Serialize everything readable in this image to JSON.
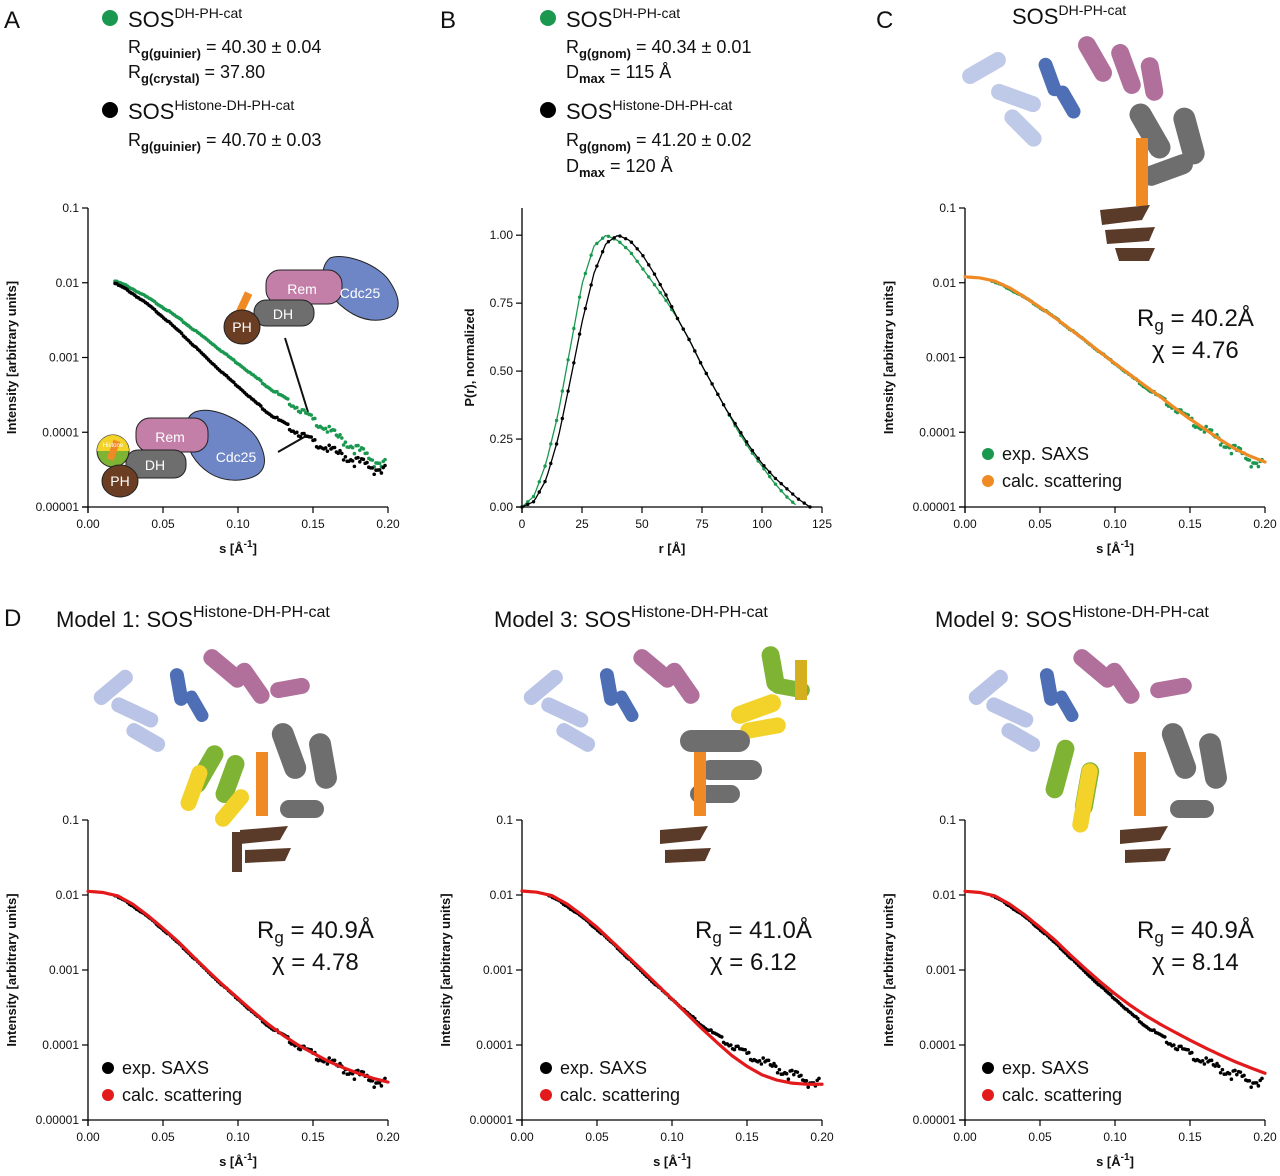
{
  "panels": {
    "A": {
      "letter": "A",
      "legend": [
        {
          "name": "SOS",
          "sup": "DH-PH-cat",
          "color": "#1a9850",
          "lines": [
            {
              "r": "R",
              "sub": "g(guinier)",
              "val": " = 40.30 ± 0.04"
            },
            {
              "r": "R",
              "sub": "g(crystal)",
              "val": " = 37.80"
            }
          ]
        },
        {
          "name": "SOS",
          "sup": "Histone-DH-PH-cat",
          "color": "#000000",
          "lines": [
            {
              "r": "R",
              "sub": "g(guinier)",
              "val": " = 40.70 ± 0.03"
            }
          ]
        }
      ],
      "schematic_labels": [
        "Rem",
        "Cdc25",
        "DH",
        "PH",
        "Histone"
      ]
    },
    "B": {
      "letter": "B",
      "legend": [
        {
          "name": "SOS",
          "sup": "DH-PH-cat",
          "color": "#1a9850",
          "lines": [
            {
              "r": "R",
              "sub": "g(gnom)",
              "val": " = 40.34 ± 0.01"
            },
            {
              "r": "D",
              "sub": "max",
              "val": " = 115 Å"
            }
          ]
        },
        {
          "name": "SOS",
          "sup": "Histone-DH-PH-cat",
          "color": "#000000",
          "lines": [
            {
              "r": "R",
              "sub": "g(gnom)",
              "val": " = 41.20 ± 0.02"
            },
            {
              "r": "D",
              "sub": "max",
              "val": " = 120 Å"
            }
          ]
        }
      ]
    },
    "C": {
      "letter": "C",
      "title_main": "SOS",
      "title_sup": "DH-PH-cat",
      "rg": "40.2Å",
      "chi": "4.76",
      "legend": [
        "exp. SAXS",
        "calc. scattering"
      ]
    },
    "D": {
      "letter": "D",
      "models": [
        {
          "title": "Model 1: SOS",
          "sup": "Histone-DH-PH-cat",
          "rg": "40.9Å",
          "chi": "4.78"
        },
        {
          "title": "Model 3: SOS",
          "sup": "Histone-DH-PH-cat",
          "rg": "41.0Å",
          "chi": "6.12"
        },
        {
          "title": "Model 9: SOS",
          "sup": "Histone-DH-PH-cat",
          "rg": "40.9Å",
          "chi": "8.14"
        }
      ],
      "legend": [
        "exp. SAXS",
        "calc. scattering"
      ]
    }
  },
  "colors": {
    "green": "#1a9850",
    "black": "#000000",
    "orange": "#f08a24",
    "red": "#e31a1c",
    "rem": "#c47fa8",
    "cdc25": "#6f86c6",
    "dh": "#6e6e6e",
    "ph": "#6b3d22",
    "linker": "#f08a24"
  },
  "chart_data": [
    {
      "id": "A",
      "type": "scatter",
      "title": "",
      "xlabel": "s [Å^-1]",
      "ylabel": "Intensity [arbitrary units]",
      "yscale": "log",
      "xlim": [
        0,
        0.2
      ],
      "ylim": [
        1e-05,
        0.1
      ],
      "xticks": [
        "0.00",
        "0.05",
        "0.10",
        "0.15",
        "0.20"
      ],
      "yticks": [
        "0.00001",
        "0.0001",
        "0.001",
        "0.01",
        "0.1"
      ],
      "series": [
        {
          "name": "SOS DH-PH-cat",
          "color": "#1a9850",
          "x": [
            0.018,
            0.025,
            0.03,
            0.04,
            0.05,
            0.06,
            0.07,
            0.08,
            0.09,
            0.1,
            0.11,
            0.12,
            0.13,
            0.14,
            0.15,
            0.16,
            0.17,
            0.18,
            0.19,
            0.198
          ],
          "y": [
            0.0105,
            0.0093,
            0.0082,
            0.0063,
            0.0047,
            0.0034,
            0.0024,
            0.0017,
            0.00118,
            0.00083,
            0.00058,
            0.00041,
            0.00029,
            0.00021,
            0.000148,
            0.000108,
            7.8e-05,
            5.8e-05,
            4.3e-05,
            3.6e-05
          ]
        },
        {
          "name": "SOS Histone-DH-PH-cat",
          "color": "#000000",
          "x": [
            0.018,
            0.025,
            0.03,
            0.04,
            0.05,
            0.06,
            0.07,
            0.08,
            0.09,
            0.1,
            0.11,
            0.12,
            0.13,
            0.14,
            0.15,
            0.16,
            0.17,
            0.18,
            0.19,
            0.198
          ],
          "y": [
            0.0098,
            0.0083,
            0.0071,
            0.0051,
            0.0035,
            0.0023,
            0.00148,
            0.00095,
            0.00062,
            0.00041,
            0.00027,
            0.000185,
            0.000132,
            9.8e-05,
            7.6e-05,
            6e-05,
            4.9e-05,
            4e-05,
            3.4e-05,
            3e-05
          ]
        }
      ]
    },
    {
      "id": "B",
      "type": "line",
      "xlabel": "r [Å]",
      "ylabel": "P(r), normalized",
      "xlim": [
        0,
        125
      ],
      "ylim": [
        0,
        1.1
      ],
      "xticks": [
        "0",
        "25",
        "50",
        "75",
        "100",
        "125"
      ],
      "yticks": [
        "0.00",
        "0.25",
        "0.50",
        "0.75",
        "1.00"
      ],
      "series": [
        {
          "name": "SOS DH-PH-cat",
          "color": "#1a9850",
          "x": [
            0,
            5,
            10,
            15,
            20,
            25,
            30,
            35,
            40,
            45,
            50,
            55,
            60,
            65,
            70,
            75,
            80,
            85,
            90,
            95,
            100,
            105,
            110,
            115
          ],
          "y": [
            0,
            0.04,
            0.16,
            0.34,
            0.58,
            0.82,
            0.96,
            1.0,
            0.98,
            0.94,
            0.88,
            0.82,
            0.76,
            0.69,
            0.61,
            0.52,
            0.44,
            0.36,
            0.28,
            0.21,
            0.15,
            0.09,
            0.04,
            0
          ]
        },
        {
          "name": "SOS Histone-DH-PH-cat",
          "color": "#000000",
          "x": [
            0,
            5,
            10,
            15,
            20,
            25,
            30,
            35,
            40,
            45,
            50,
            55,
            60,
            65,
            70,
            75,
            80,
            85,
            90,
            95,
            100,
            105,
            110,
            115,
            120
          ],
          "y": [
            0,
            0.02,
            0.1,
            0.25,
            0.46,
            0.68,
            0.86,
            0.97,
            1.0,
            0.98,
            0.93,
            0.86,
            0.78,
            0.69,
            0.61,
            0.52,
            0.44,
            0.36,
            0.29,
            0.22,
            0.16,
            0.11,
            0.07,
            0.03,
            0
          ]
        }
      ]
    },
    {
      "id": "C",
      "type": "scatter",
      "xlabel": "s [Å^-1]",
      "ylabel": "Intensity [arbitrary units]",
      "yscale": "log",
      "xlim": [
        0,
        0.2
      ],
      "ylim": [
        1e-05,
        0.1
      ],
      "xticks": [
        "0.00",
        "0.05",
        "0.10",
        "0.15",
        "0.20"
      ],
      "yticks": [
        "0.00001",
        "0.0001",
        "0.001",
        "0.01",
        "0.1"
      ],
      "series": [
        {
          "name": "exp. SAXS",
          "color": "#1a9850",
          "x": [
            0.018,
            0.025,
            0.03,
            0.04,
            0.05,
            0.06,
            0.07,
            0.08,
            0.09,
            0.1,
            0.11,
            0.12,
            0.13,
            0.14,
            0.15,
            0.16,
            0.17,
            0.18,
            0.19,
            0.198
          ],
          "y": [
            0.0105,
            0.0093,
            0.0082,
            0.0063,
            0.0047,
            0.0034,
            0.0024,
            0.0017,
            0.00118,
            0.00083,
            0.00058,
            0.00041,
            0.00029,
            0.00021,
            0.000148,
            0.000108,
            7.8e-05,
            5.8e-05,
            4.3e-05,
            3.6e-05
          ]
        },
        {
          "name": "calc. scattering",
          "color": "#f08a24",
          "x": [
            0,
            0.01,
            0.02,
            0.03,
            0.04,
            0.05,
            0.06,
            0.07,
            0.08,
            0.09,
            0.1,
            0.11,
            0.12,
            0.13,
            0.14,
            0.15,
            0.16,
            0.17,
            0.18,
            0.19,
            0.2
          ],
          "y": [
            0.012,
            0.0116,
            0.0105,
            0.0085,
            0.0064,
            0.0047,
            0.0034,
            0.0024,
            0.0017,
            0.00118,
            0.00083,
            0.00059,
            0.00042,
            0.0003,
            0.00021,
            0.00015,
            0.00011,
            8e-05,
            6e-05,
            4.8e-05,
            4e-05
          ]
        }
      ]
    },
    {
      "id": "D1",
      "type": "scatter",
      "xlabel": "s [Å^-1]",
      "ylabel": "Intensity [arbitrary units]",
      "yscale": "log",
      "xlim": [
        0,
        0.2
      ],
      "ylim": [
        1e-05,
        0.1
      ],
      "xticks": [
        "0.00",
        "0.05",
        "0.10",
        "0.15",
        "0.20"
      ],
      "yticks": [
        "0.00001",
        "0.0001",
        "0.001",
        "0.01",
        "0.1"
      ],
      "series": [
        {
          "name": "exp. SAXS",
          "color": "#000000",
          "x": [
            0.018,
            0.025,
            0.03,
            0.04,
            0.05,
            0.06,
            0.07,
            0.08,
            0.09,
            0.1,
            0.11,
            0.12,
            0.13,
            0.14,
            0.15,
            0.16,
            0.17,
            0.18,
            0.19,
            0.198
          ],
          "y": [
            0.0098,
            0.0083,
            0.0071,
            0.0051,
            0.0035,
            0.0023,
            0.00148,
            0.00095,
            0.00062,
            0.00041,
            0.00027,
            0.000185,
            0.000132,
            9.8e-05,
            7.6e-05,
            6e-05,
            4.9e-05,
            4e-05,
            3.4e-05,
            3e-05
          ]
        },
        {
          "name": "calc. scattering",
          "color": "#e31a1c",
          "x": [
            0,
            0.01,
            0.02,
            0.03,
            0.04,
            0.05,
            0.06,
            0.07,
            0.08,
            0.09,
            0.1,
            0.11,
            0.12,
            0.13,
            0.14,
            0.15,
            0.16,
            0.17,
            0.18,
            0.19,
            0.2
          ],
          "y": [
            0.0112,
            0.0108,
            0.0097,
            0.0075,
            0.0053,
            0.0036,
            0.0024,
            0.00152,
            0.00097,
            0.00063,
            0.00042,
            0.00028,
            0.00019,
            0.000135,
            0.0001,
            7.8e-05,
            6.1e-05,
            5e-05,
            4.2e-05,
            3.6e-05,
            3.2e-05
          ]
        }
      ]
    },
    {
      "id": "D3",
      "type": "scatter",
      "xlabel": "s [Å^-1]",
      "ylabel": "Intensity [arbitrary units]",
      "yscale": "log",
      "xlim": [
        0,
        0.2
      ],
      "ylim": [
        1e-05,
        0.1
      ],
      "xticks": [
        "0.00",
        "0.05",
        "0.10",
        "0.15",
        "0.20"
      ],
      "yticks": [
        "0.00001",
        "0.0001",
        "0.001",
        "0.01",
        "0.1"
      ],
      "series": [
        {
          "name": "exp. SAXS",
          "color": "#000000",
          "x": [
            0.018,
            0.025,
            0.03,
            0.04,
            0.05,
            0.06,
            0.07,
            0.08,
            0.09,
            0.1,
            0.11,
            0.12,
            0.13,
            0.14,
            0.15,
            0.16,
            0.17,
            0.18,
            0.19,
            0.198
          ],
          "y": [
            0.0098,
            0.0083,
            0.0071,
            0.0051,
            0.0035,
            0.0023,
            0.00148,
            0.00095,
            0.00062,
            0.00041,
            0.00027,
            0.000185,
            0.000132,
            9.8e-05,
            7.6e-05,
            6e-05,
            4.9e-05,
            4e-05,
            3.4e-05,
            3e-05
          ]
        },
        {
          "name": "calc. scattering",
          "color": "#e31a1c",
          "x": [
            0,
            0.01,
            0.02,
            0.03,
            0.04,
            0.05,
            0.06,
            0.07,
            0.08,
            0.09,
            0.1,
            0.11,
            0.12,
            0.13,
            0.14,
            0.15,
            0.16,
            0.17,
            0.18,
            0.19,
            0.2
          ],
          "y": [
            0.0113,
            0.0109,
            0.0098,
            0.0076,
            0.0054,
            0.0037,
            0.0024,
            0.00155,
            0.001,
            0.00064,
            0.00041,
            0.00026,
            0.000165,
            0.000108,
            7.2e-05,
            5.2e-05,
            4e-05,
            3.4e-05,
            3.1e-05,
            3e-05,
            3e-05
          ]
        }
      ]
    },
    {
      "id": "D9",
      "type": "scatter",
      "xlabel": "s [Å^-1]",
      "ylabel": "Intensity [arbitrary units]",
      "yscale": "log",
      "xlim": [
        0,
        0.2
      ],
      "ylim": [
        1e-05,
        0.1
      ],
      "xticks": [
        "0.00",
        "0.05",
        "0.10",
        "0.15",
        "0.20"
      ],
      "yticks": [
        "0.00001",
        "0.0001",
        "0.001",
        "0.01",
        "0.1"
      ],
      "series": [
        {
          "name": "exp. SAXS",
          "color": "#000000",
          "x": [
            0.018,
            0.025,
            0.03,
            0.04,
            0.05,
            0.06,
            0.07,
            0.08,
            0.09,
            0.1,
            0.11,
            0.12,
            0.13,
            0.14,
            0.15,
            0.16,
            0.17,
            0.18,
            0.19,
            0.198
          ],
          "y": [
            0.0098,
            0.0083,
            0.0071,
            0.0051,
            0.0035,
            0.0023,
            0.00148,
            0.00095,
            0.00062,
            0.00041,
            0.00027,
            0.000185,
            0.000132,
            9.8e-05,
            7.6e-05,
            6e-05,
            4.9e-05,
            4e-05,
            3.4e-05,
            3e-05
          ]
        },
        {
          "name": "calc. scattering",
          "color": "#e31a1c",
          "x": [
            0,
            0.01,
            0.02,
            0.03,
            0.04,
            0.05,
            0.06,
            0.07,
            0.08,
            0.09,
            0.1,
            0.11,
            0.12,
            0.13,
            0.14,
            0.15,
            0.16,
            0.17,
            0.18,
            0.19,
            0.2
          ],
          "y": [
            0.0112,
            0.0108,
            0.0097,
            0.0075,
            0.0054,
            0.0037,
            0.0025,
            0.0016,
            0.00105,
            0.0007,
            0.00048,
            0.00034,
            0.00025,
            0.00019,
            0.000148,
            0.000116,
            9.2e-05,
            7.4e-05,
            6e-05,
            5e-05,
            4.2e-05
          ]
        }
      ]
    }
  ]
}
